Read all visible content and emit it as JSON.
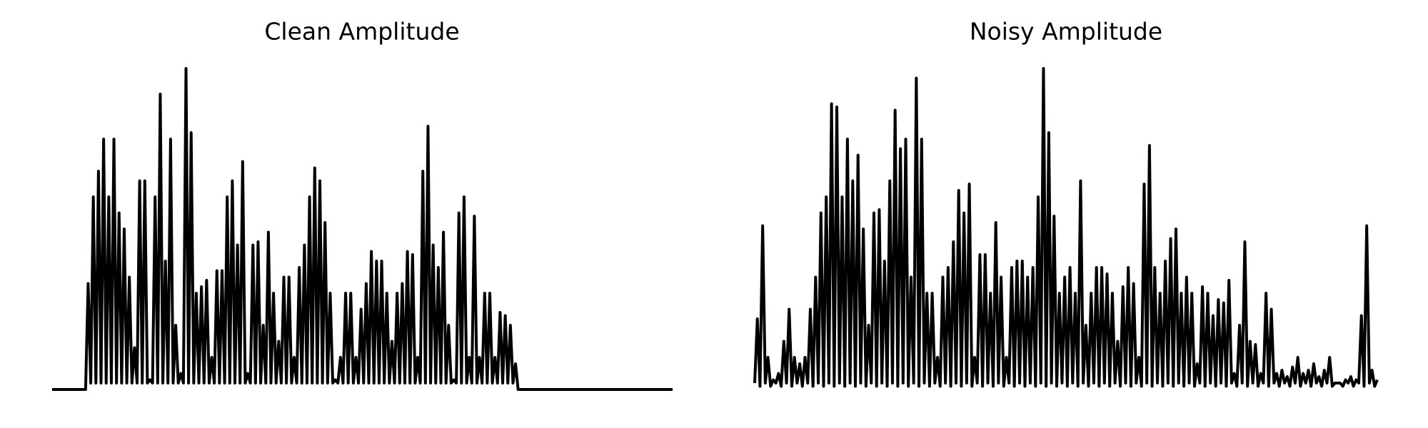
{
  "chart_data": [
    {
      "type": "line",
      "title": "Clean Amplitude",
      "color": "#000000",
      "ylim": [
        0,
        1
      ],
      "values": [
        0,
        0,
        0,
        0,
        0,
        0,
        0,
        0,
        0,
        0,
        0,
        0,
        0,
        0,
        0.33,
        0.02,
        0.6,
        0.02,
        0.68,
        0.02,
        0.78,
        0.02,
        0.6,
        0.02,
        0.78,
        0.02,
        0.55,
        0.02,
        0.5,
        0.02,
        0.35,
        0.02,
        0.13,
        0.02,
        0.65,
        0.02,
        0.65,
        0.02,
        0.03,
        0.02,
        0.6,
        0.02,
        0.92,
        0.02,
        0.4,
        0.02,
        0.78,
        0.02,
        0.2,
        0.02,
        0.05,
        0.02,
        1.0,
        0.02,
        0.8,
        0.02,
        0.3,
        0.02,
        0.32,
        0.02,
        0.34,
        0.02,
        0.1,
        0.02,
        0.37,
        0.02,
        0.37,
        0.02,
        0.6,
        0.02,
        0.65,
        0.02,
        0.45,
        0.02,
        0.71,
        0.02,
        0.05,
        0.02,
        0.45,
        0.02,
        0.46,
        0.02,
        0.2,
        0.02,
        0.49,
        0.02,
        0.3,
        0.02,
        0.15,
        0.02,
        0.35,
        0.02,
        0.35,
        0.02,
        0.1,
        0.02,
        0.38,
        0.02,
        0.45,
        0.02,
        0.6,
        0.02,
        0.69,
        0.02,
        0.65,
        0.02,
        0.52,
        0.02,
        0.3,
        0.02,
        0.03,
        0.02,
        0.1,
        0.02,
        0.3,
        0.02,
        0.3,
        0.02,
        0.1,
        0.02,
        0.25,
        0.02,
        0.33,
        0.02,
        0.43,
        0.02,
        0.4,
        0.02,
        0.4,
        0.02,
        0.3,
        0.02,
        0.15,
        0.02,
        0.3,
        0.02,
        0.33,
        0.02,
        0.43,
        0.02,
        0.42,
        0.02,
        0.1,
        0.02,
        0.68,
        0.02,
        0.82,
        0.02,
        0.45,
        0.02,
        0.38,
        0.02,
        0.49,
        0.02,
        0.2,
        0.02,
        0.03,
        0.02,
        0.55,
        0.02,
        0.6,
        0.02,
        0.1,
        0.02,
        0.54,
        0.02,
        0.1,
        0.02,
        0.3,
        0.02,
        0.3,
        0.02,
        0.1,
        0.02,
        0.24,
        0.02,
        0.23,
        0.02,
        0.2,
        0.02,
        0.08,
        0,
        0,
        0,
        0,
        0,
        0,
        0,
        0,
        0,
        0,
        0,
        0,
        0,
        0,
        0,
        0,
        0,
        0,
        0,
        0,
        0,
        0,
        0,
        0,
        0,
        0,
        0,
        0,
        0,
        0,
        0,
        0,
        0,
        0,
        0,
        0,
        0,
        0,
        0,
        0,
        0,
        0,
        0,
        0,
        0,
        0,
        0,
        0,
        0,
        0,
        0,
        0,
        0,
        0,
        0,
        0,
        0,
        0,
        0,
        0,
        0
      ]
    },
    {
      "type": "line",
      "title": "Noisy Amplitude",
      "color": "#000000",
      "ylim": [
        0,
        1
      ],
      "values": [
        0.02,
        0.22,
        0.01,
        0.51,
        0.02,
        0.1,
        0.01,
        0.03,
        0.02,
        0.05,
        0.01,
        0.15,
        0.02,
        0.25,
        0.01,
        0.1,
        0.02,
        0.08,
        0.01,
        0.1,
        0.02,
        0.25,
        0.01,
        0.35,
        0.02,
        0.55,
        0.01,
        0.6,
        0.02,
        0.89,
        0.01,
        0.88,
        0.02,
        0.6,
        0.01,
        0.78,
        0.02,
        0.65,
        0.01,
        0.73,
        0.02,
        0.5,
        0.01,
        0.2,
        0.02,
        0.55,
        0.01,
        0.56,
        0.02,
        0.4,
        0.01,
        0.65,
        0.02,
        0.87,
        0.01,
        0.75,
        0.02,
        0.78,
        0.01,
        0.35,
        0.02,
        0.97,
        0.01,
        0.78,
        0.02,
        0.3,
        0.01,
        0.3,
        0.02,
        0.1,
        0.01,
        0.35,
        0.02,
        0.38,
        0.01,
        0.46,
        0.02,
        0.62,
        0.01,
        0.55,
        0.02,
        0.64,
        0.01,
        0.1,
        0.02,
        0.42,
        0.01,
        0.42,
        0.02,
        0.3,
        0.01,
        0.52,
        0.02,
        0.35,
        0.01,
        0.1,
        0.02,
        0.38,
        0.01,
        0.4,
        0.02,
        0.4,
        0.01,
        0.35,
        0.02,
        0.38,
        0.01,
        0.6,
        0.02,
        1.0,
        0.01,
        0.8,
        0.02,
        0.54,
        0.01,
        0.3,
        0.02,
        0.35,
        0.01,
        0.38,
        0.02,
        0.3,
        0.01,
        0.65,
        0.02,
        0.2,
        0.01,
        0.3,
        0.02,
        0.38,
        0.01,
        0.38,
        0.02,
        0.36,
        0.01,
        0.3,
        0.02,
        0.15,
        0.01,
        0.32,
        0.02,
        0.38,
        0.01,
        0.33,
        0.02,
        0.1,
        0.01,
        0.64,
        0.02,
        0.76,
        0.01,
        0.38,
        0.02,
        0.3,
        0.01,
        0.4,
        0.02,
        0.47,
        0.01,
        0.5,
        0.02,
        0.3,
        0.01,
        0.35,
        0.02,
        0.3,
        0.01,
        0.08,
        0.02,
        0.32,
        0.01,
        0.3,
        0.02,
        0.23,
        0.01,
        0.28,
        0.02,
        0.27,
        0.01,
        0.34,
        0.02,
        0.05,
        0.01,
        0.2,
        0.02,
        0.46,
        0.01,
        0.15,
        0.02,
        0.14,
        0.01,
        0.05,
        0.02,
        0.3,
        0.01,
        0.25,
        0.02,
        0.05,
        0.01,
        0.06,
        0.02,
        0.04,
        0.01,
        0.07,
        0.02,
        0.1,
        0.01,
        0.05,
        0.02,
        0.06,
        0.01,
        0.08,
        0.02,
        0.04,
        0.01,
        0.06,
        0.02,
        0.1,
        0.01,
        0.02,
        0.02,
        0.02,
        0.01,
        0.03,
        0.02,
        0.04,
        0.01,
        0.03,
        0.02,
        0.23,
        0.01,
        0.51,
        0.02,
        0.06,
        0.01,
        0.03
      ]
    }
  ]
}
